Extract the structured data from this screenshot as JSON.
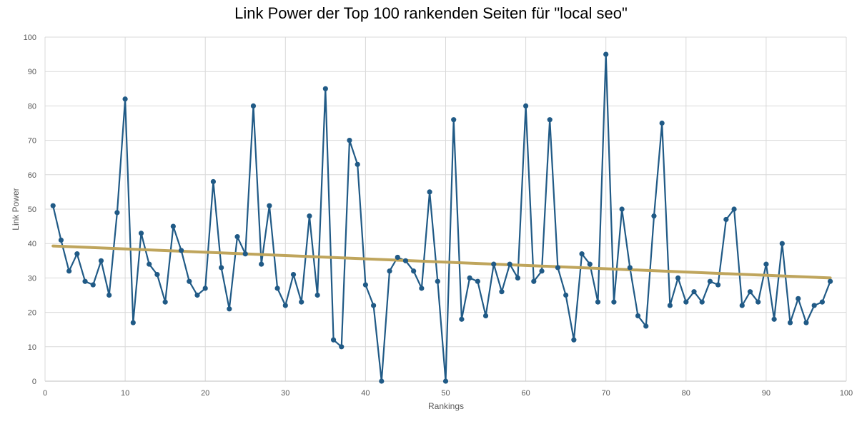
{
  "chart_data": {
    "type": "scatter",
    "title": "Link Power der Top 100 rankenden Seiten für \"local seo\"",
    "xlabel": "Rankings",
    "ylabel": "Link Power",
    "xlim": [
      0,
      100
    ],
    "ylim": [
      0,
      100
    ],
    "x_ticks": [
      0,
      10,
      20,
      30,
      40,
      50,
      60,
      70,
      80,
      90,
      100
    ],
    "y_ticks": [
      0,
      10,
      20,
      30,
      40,
      50,
      60,
      70,
      80,
      90,
      100
    ],
    "grid": true,
    "series": [
      {
        "style": "line-with-markers",
        "color": "#205a86",
        "x": [
          1,
          2,
          3,
          4,
          5,
          6,
          7,
          8,
          9,
          10,
          11,
          12,
          13,
          14,
          15,
          16,
          17,
          18,
          19,
          20,
          21,
          22,
          23,
          24,
          25,
          26,
          27,
          28,
          29,
          30,
          31,
          32,
          33,
          34,
          35,
          36,
          37,
          38,
          39,
          40,
          41,
          42,
          43,
          44,
          45,
          46,
          47,
          48,
          49,
          50,
          51,
          52,
          53,
          54,
          55,
          56,
          57,
          58,
          59,
          60,
          61,
          62,
          63,
          64,
          65,
          66,
          67,
          68,
          69,
          70,
          71,
          72,
          73,
          74,
          75,
          76,
          77,
          78,
          79,
          80,
          81,
          82,
          83,
          84,
          85,
          86,
          87,
          88,
          89,
          90,
          91,
          92,
          93,
          94,
          95,
          96,
          97,
          98
        ],
        "y": [
          51,
          41,
          32,
          37,
          29,
          28,
          35,
          25,
          49,
          82,
          17,
          43,
          34,
          31,
          23,
          45,
          38,
          29,
          25,
          27,
          58,
          33,
          21,
          42,
          37,
          80,
          34,
          51,
          27,
          22,
          31,
          23,
          48,
          25,
          85,
          12,
          10,
          70,
          63,
          28,
          22,
          0,
          32,
          36,
          35,
          32,
          27,
          55,
          29,
          0,
          76,
          18,
          30,
          29,
          19,
          34,
          26,
          34,
          30,
          80,
          29,
          32,
          76,
          33,
          25,
          12,
          37,
          34,
          23,
          95,
          23,
          50,
          33,
          19,
          16,
          48,
          75,
          22,
          30,
          23,
          26,
          23,
          29,
          28,
          47,
          50,
          22,
          26,
          23,
          34,
          18,
          40,
          17,
          24,
          17,
          22,
          23,
          29
        ]
      },
      {
        "style": "trendline",
        "color": "#bfa55c",
        "x": [
          1,
          98
        ],
        "y": [
          39.3,
          30.0
        ]
      }
    ]
  }
}
